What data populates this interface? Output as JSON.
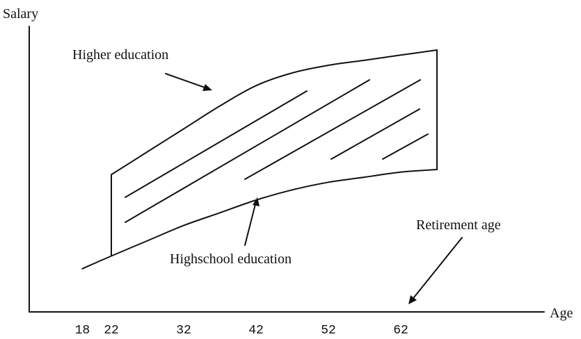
{
  "chart_data": {
    "type": "area",
    "title": "",
    "xlabel": "Age",
    "ylabel": "Salary",
    "x_ticks": [
      18,
      22,
      32,
      42,
      52,
      62
    ],
    "series": [
      {
        "name": "Higher education",
        "x": [
          22,
          27,
          32,
          37,
          42,
          47,
          52,
          57,
          62,
          67
        ],
        "values": [
          0.54,
          0.63,
          0.72,
          0.81,
          0.89,
          0.94,
          0.97,
          0.99,
          1.01,
          1.03
        ]
      },
      {
        "name": "Highschool education",
        "x": [
          18,
          22,
          27,
          32,
          37,
          42,
          47,
          52,
          57,
          62,
          67
        ],
        "values": [
          0.17,
          0.22,
          0.28,
          0.34,
          0.39,
          0.44,
          0.48,
          0.51,
          0.53,
          0.55,
          0.56
        ]
      }
    ],
    "annotations": [
      {
        "text": "Higher education"
      },
      {
        "text": "Highschool education"
      },
      {
        "text": "Retirement age"
      }
    ],
    "grid": false,
    "legend": "none"
  }
}
